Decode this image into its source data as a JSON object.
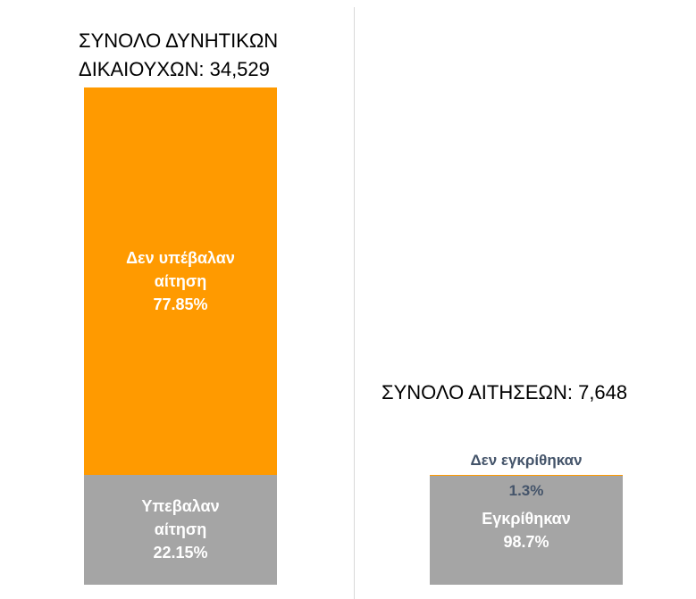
{
  "chart_data": {
    "type": "stacked_bar",
    "bars": [
      {
        "label": "ΣΥΝΟΛΟ ΔΥΝΗΤΙΚΩΝ ΔΙΚΑΙΟΥΧΩΝ:",
        "total": 34529,
        "total_label": "34,529",
        "segments": [
          {
            "name": "Υπεβαλαν αίτηση",
            "value": 22.15,
            "value_label": "22.15%",
            "color": "#a5a5a5"
          },
          {
            "name": "Δεν υπέβαλαν αίτηση",
            "value": 77.85,
            "value_label": "77.85%",
            "color": "#ff9a00"
          }
        ]
      },
      {
        "label": "ΣΥΝΟΛΟ ΑΙΤΗΣΕΩΝ:",
        "total": 7648,
        "total_label": "7,648",
        "segments": [
          {
            "name": "Εγκρίθηκαν",
            "value": 98.7,
            "value_label": "98.7%",
            "color": "#a5a5a5"
          },
          {
            "name": "Δεν εγκρίθηκαν",
            "value": 1.3,
            "value_label": "1.3%",
            "color": "#ff9a00"
          }
        ]
      }
    ]
  }
}
